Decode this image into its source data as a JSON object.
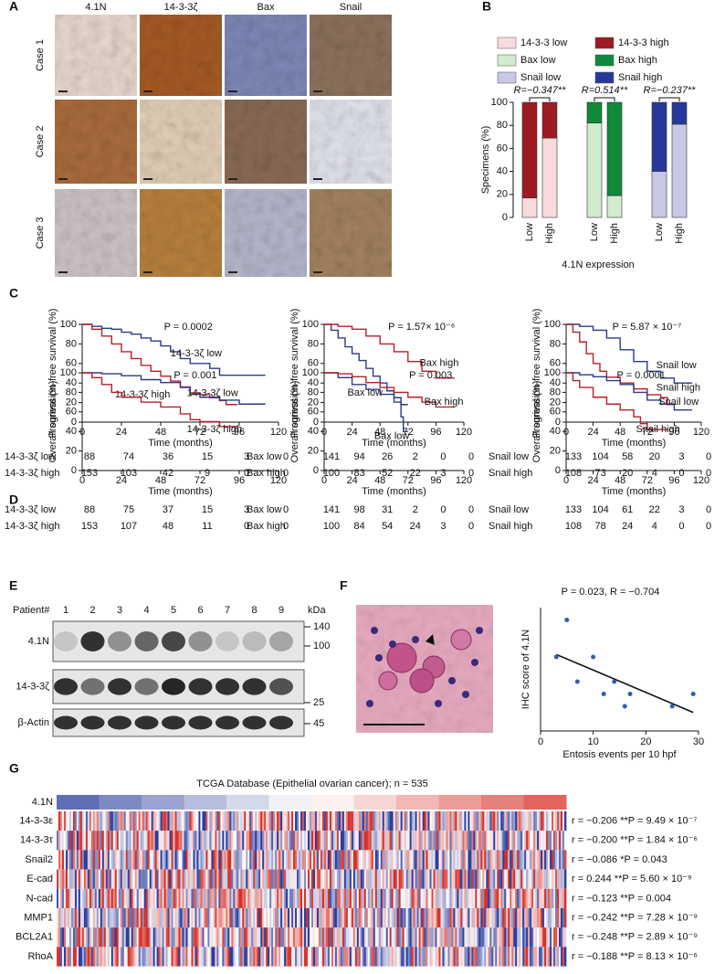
{
  "panel_labels": [
    "A",
    "B",
    "C",
    "D",
    "E",
    "F",
    "G"
  ],
  "ihc": {
    "columns": [
      "4.1N",
      "14-3-3ζ",
      "Bax",
      "Snail"
    ],
    "rows": [
      "Case 1",
      "Case 2",
      "Case 3"
    ]
  },
  "chart_data": [
    {
      "type": "bar",
      "stacked": true,
      "y_label": "Specimens (%)",
      "x_label": "4.1N expression",
      "categories": [
        "Low",
        "High",
        "Low",
        "High",
        "Low",
        "High"
      ],
      "annotations": [
        "R=−0.347**",
        "R=0.514**",
        "R=−0.237**"
      ],
      "ylim": [
        0,
        100
      ],
      "yticks": [
        0,
        20,
        40,
        60,
        80,
        100
      ],
      "series": [
        {
          "name": "14-3-3 low",
          "color": "#f9dadd",
          "values": [
            17,
            69,
            null,
            null,
            null,
            null
          ]
        },
        {
          "name": "14-3-3 high",
          "color": "#9e1b24",
          "values": [
            83,
            31,
            null,
            null,
            null,
            null
          ]
        },
        {
          "name": "Bax low",
          "color": "#d2ebcf",
          "values": [
            null,
            null,
            82,
            19,
            null,
            null
          ]
        },
        {
          "name": "Bax high",
          "color": "#0e8a3a",
          "values": [
            null,
            null,
            18,
            81,
            null,
            null
          ]
        },
        {
          "name": "Snail low",
          "color": "#c8c8e6",
          "values": [
            null,
            null,
            null,
            null,
            40,
            81
          ]
        },
        {
          "name": "Snail high",
          "color": "#25399a",
          "values": [
            null,
            null,
            null,
            null,
            60,
            19
          ]
        }
      ]
    },
    {
      "type": "line",
      "step": true,
      "x_label": "Time (months)",
      "y_label": "Progression-free survival (%)",
      "annotation": "P = 0.0002",
      "xlim": [
        0,
        120
      ],
      "ylim": [
        0,
        100
      ],
      "xticks": [
        0,
        24,
        48,
        72,
        96,
        120
      ],
      "yticks": [
        0,
        20,
        40,
        60,
        80,
        100
      ],
      "series": [
        {
          "name": "14-3-3ζ low",
          "color": "#2b3a87",
          "x": [
            0,
            6,
            12,
            18,
            24,
            30,
            36,
            42,
            48,
            54,
            60,
            66,
            72,
            78,
            84,
            96,
            112
          ],
          "values": [
            100,
            98,
            96,
            95,
            92,
            90,
            86,
            83,
            78,
            72,
            65,
            60,
            60,
            55,
            48,
            48,
            48
          ],
          "at_risk": [
            88,
            74,
            36,
            15,
            3,
            0
          ]
        },
        {
          "name": "14-3-3ζ high",
          "color": "#b5202e",
          "x": [
            0,
            6,
            12,
            18,
            24,
            30,
            36,
            42,
            48,
            54,
            60,
            66,
            72,
            78,
            84,
            88,
            95
          ],
          "values": [
            100,
            95,
            88,
            80,
            72,
            65,
            58,
            52,
            47,
            42,
            36,
            30,
            28,
            25,
            22,
            18,
            18
          ],
          "at_risk": [
            153,
            103,
            42,
            9,
            0,
            0
          ]
        }
      ]
    },
    {
      "type": "line",
      "step": true,
      "x_label": "Time (months)",
      "y_label": "Progression-free survival (%)",
      "annotation": "P = 1.57× 10⁻⁶",
      "xlim": [
        0,
        120
      ],
      "ylim": [
        0,
        100
      ],
      "xticks": [
        0,
        24,
        48,
        72,
        96,
        120
      ],
      "yticks": [
        0,
        20,
        40,
        60,
        80,
        100
      ],
      "series": [
        {
          "name": "Bax low",
          "color": "#2b3a87",
          "x": [
            0,
            6,
            12,
            18,
            24,
            30,
            36,
            42,
            48,
            54,
            60,
            66,
            72
          ],
          "values": [
            100,
            94,
            86,
            77,
            70,
            63,
            55,
            47,
            40,
            32,
            25,
            18,
            18
          ],
          "at_risk": [
            141,
            94,
            26,
            2,
            0,
            0
          ]
        },
        {
          "name": "Bax high",
          "color": "#b5202e",
          "x": [
            0,
            12,
            24,
            36,
            48,
            60,
            72,
            84,
            96,
            112
          ],
          "values": [
            100,
            98,
            95,
            88,
            80,
            72,
            62,
            52,
            45,
            45
          ],
          "at_risk": [
            100,
            83,
            52,
            22,
            3,
            0
          ]
        }
      ]
    },
    {
      "type": "line",
      "step": true,
      "x_label": "Time (months)",
      "y_label": "Progression-free survival (%)",
      "annotation": "P = 5.87 × 10⁻⁷",
      "xlim": [
        0,
        120
      ],
      "ylim": [
        0,
        100
      ],
      "xticks": [
        0,
        24,
        48,
        72,
        96,
        120
      ],
      "yticks": [
        0,
        20,
        40,
        60,
        80,
        100
      ],
      "series": [
        {
          "name": "Snail low",
          "color": "#2b3a87",
          "x": [
            0,
            12,
            24,
            36,
            48,
            60,
            72,
            84,
            96,
            112
          ],
          "values": [
            100,
            98,
            94,
            86,
            74,
            62,
            52,
            45,
            40,
            40
          ],
          "at_risk": [
            133,
            104,
            58,
            20,
            3,
            0
          ]
        },
        {
          "name": "Snail high",
          "color": "#b5202e",
          "x": [
            0,
            6,
            12,
            18,
            24,
            30,
            36,
            48,
            60,
            72,
            84,
            90,
            95
          ],
          "values": [
            100,
            92,
            82,
            70,
            60,
            52,
            46,
            40,
            34,
            28,
            25,
            18,
            18
          ],
          "at_risk": [
            108,
            73,
            20,
            4,
            0,
            0
          ]
        }
      ]
    },
    {
      "type": "line",
      "step": true,
      "x_label": "Time (months)",
      "y_label": "Overall surival (%)",
      "annotation": "P = 0.001",
      "xlim": [
        0,
        120
      ],
      "ylim": [
        0,
        100
      ],
      "xticks": [
        0,
        24,
        48,
        72,
        96,
        120
      ],
      "yticks": [
        0,
        20,
        40,
        60,
        80,
        100
      ],
      "series": [
        {
          "name": "14-3-3ζ low",
          "color": "#2b3a87",
          "x": [
            0,
            12,
            24,
            36,
            48,
            60,
            66,
            72,
            84,
            96,
            112
          ],
          "values": [
            100,
            99,
            97,
            93,
            90,
            85,
            78,
            75,
            72,
            68,
            68
          ],
          "at_risk": [
            88,
            75,
            37,
            15,
            3,
            0
          ]
        },
        {
          "name": "14-3-3ζ high",
          "color": "#b5202e",
          "x": [
            0,
            6,
            12,
            18,
            24,
            36,
            48,
            60,
            66,
            72,
            84,
            95
          ],
          "values": [
            100,
            95,
            88,
            80,
            75,
            70,
            65,
            58,
            52,
            50,
            45,
            45
          ],
          "at_risk": [
            153,
            107,
            48,
            11,
            0,
            0
          ]
        }
      ]
    },
    {
      "type": "line",
      "step": true,
      "x_label": "Time (months)",
      "y_label": "Overall surival (%)",
      "annotation": "P = 0.003",
      "xlim": [
        0,
        120
      ],
      "ylim": [
        0,
        100
      ],
      "xticks": [
        0,
        24,
        48,
        72,
        96,
        120
      ],
      "yticks": [
        0,
        20,
        40,
        60,
        80,
        100
      ],
      "series": [
        {
          "name": "Bax low",
          "color": "#2b3a87",
          "x": [
            0,
            12,
            24,
            36,
            48,
            60,
            66,
            68,
            72
          ],
          "values": [
            100,
            95,
            88,
            83,
            78,
            70,
            55,
            40,
            40
          ],
          "at_risk": [
            141,
            98,
            31,
            2,
            0,
            0
          ]
        },
        {
          "name": "Bax high",
          "color": "#b5202e",
          "x": [
            0,
            12,
            24,
            36,
            48,
            60,
            72,
            84,
            96,
            112
          ],
          "values": [
            100,
            99,
            96,
            90,
            85,
            80,
            75,
            70,
            65,
            65
          ],
          "at_risk": [
            100,
            84,
            54,
            24,
            3,
            0
          ]
        }
      ]
    },
    {
      "type": "line",
      "step": true,
      "x_label": "Time (months)",
      "y_label": "Overall surival (%)",
      "annotation": "P = 0.0001",
      "xlim": [
        0,
        120
      ],
      "ylim": [
        0,
        100
      ],
      "xticks": [
        0,
        24,
        48,
        72,
        96,
        120
      ],
      "yticks": [
        0,
        20,
        40,
        60,
        80,
        100
      ],
      "series": [
        {
          "name": "Snail low",
          "color": "#2b3a87",
          "x": [
            0,
            12,
            24,
            36,
            48,
            60,
            72,
            84,
            96,
            112
          ],
          "values": [
            100,
            98,
            96,
            92,
            88,
            80,
            72,
            68,
            62,
            62
          ],
          "at_risk": [
            133,
            104,
            61,
            22,
            3,
            0
          ]
        },
        {
          "name": "Snail high",
          "color": "#b5202e",
          "x": [
            0,
            6,
            12,
            24,
            36,
            48,
            60,
            66,
            72,
            84,
            90
          ],
          "values": [
            100,
            92,
            85,
            75,
            68,
            62,
            55,
            48,
            42,
            42,
            42
          ],
          "at_risk": [
            108,
            78,
            24,
            4,
            0,
            0
          ]
        }
      ]
    },
    {
      "type": "scatter",
      "title": "P = 0.023, R = −0.704",
      "x_label": "Entosis events per 10 hpf",
      "y_label": "IHC score of 4.1N",
      "color": "#2f5fb0",
      "xlim": [
        0,
        30
      ],
      "ylim": [
        0,
        10
      ],
      "xticks": [
        0,
        10,
        20,
        30
      ],
      "x": [
        3,
        5,
        7,
        10,
        12,
        14,
        16,
        17,
        25,
        29
      ],
      "values": [
        6,
        9,
        4,
        6,
        3,
        4,
        2,
        3,
        2,
        3
      ],
      "fit": {
        "x": [
          3,
          29
        ],
        "values": [
          6.2,
          1.5
        ]
      }
    }
  ],
  "western": {
    "header": "Patient#",
    "lanes": [
      "1",
      "2",
      "3",
      "4",
      "5",
      "6",
      "7",
      "8",
      "9"
    ],
    "unit": "kDa",
    "rows": [
      "4.1N",
      "14-3-3ζ",
      "β-Actin"
    ],
    "markers": [
      "140",
      "100",
      "25",
      "45"
    ]
  },
  "heatmap": {
    "title": "TCGA Database (Epithelial ovarian cancer); n = 535",
    "rows": [
      "4.1N",
      "14-3-3ε",
      "14-3-3τ",
      "Snail2",
      "E-cad",
      "N-cad",
      "MMP1",
      "BCL2A1",
      "RhoA"
    ],
    "stats": [
      "r = −0.206 **P = 9.49 × 10⁻⁷",
      "r = −0.200 **P = 1.84 × 10⁻⁶",
      "r = −0.086 *P = 0.043",
      "r = 0.244 **P = 5.60 × 10⁻⁹",
      "r = −0.123 **P = 0.004",
      "r = −0.242 **P = 7.28 × 10⁻⁹",
      "r = −0.248 **P = 2.89 × 10⁻⁹",
      "r = −0.188 **P = 8.13 × 10⁻⁶"
    ]
  }
}
